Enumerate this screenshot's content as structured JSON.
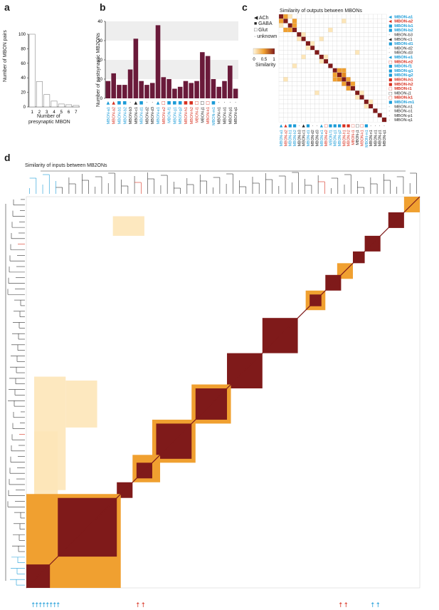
{
  "panels": {
    "a": "a",
    "b": "b",
    "c": "c",
    "d": "d"
  },
  "panel_a": {
    "ylabel": "Number of MBON pairs",
    "xlabel_line1": "Number of",
    "xlabel_line2": "presynaptic MBON",
    "yticks": [
      "0",
      "20",
      "40",
      "60",
      "80",
      "100"
    ],
    "xticks": [
      "1",
      "2",
      "3",
      "4",
      "5",
      "6",
      "7"
    ]
  },
  "panel_b": {
    "ylabel": "Number of postsynaptic MB2ONs",
    "yticks": [
      "0",
      "10",
      "20",
      "30",
      "40"
    ]
  },
  "panel_c": {
    "title": "Similarity of outputs between MBONs",
    "legend": [
      {
        "symbol": "◀",
        "label": "ACh"
      },
      {
        "symbol": "■",
        "label": "GABA"
      },
      {
        "symbol": "□",
        "label": "Glut"
      },
      {
        "symbol": "·",
        "label": "unknown"
      }
    ],
    "scale_ticks": [
      "0",
      "0.5",
      "1"
    ],
    "scale_label": "Similarity"
  },
  "panel_d": {
    "title": "Similarity of inputs between MB2ONs"
  },
  "colors": {
    "bar": "#6a1a3a",
    "blue": "#1a9bd7",
    "red": "#d7301f",
    "dark": "#7f1a1a",
    "mid": "#f0a030",
    "light": "#fde6b8"
  },
  "chart_data": [
    {
      "type": "bar",
      "title": "",
      "xlabel": "Number of presynaptic MBON",
      "ylabel": "Number of MBON pairs",
      "categories": [
        "1",
        "2",
        "3",
        "4",
        "5",
        "6",
        "7"
      ],
      "values": [
        100,
        35,
        17,
        8,
        4,
        3,
        2
      ],
      "ylim": [
        0,
        100
      ]
    },
    {
      "type": "bar",
      "title": "",
      "ylabel": "Number of postsynaptic MB2ONs",
      "ylim": [
        0,
        40
      ],
      "categories": [
        "MBON-a1",
        "MBON-a2",
        "MBON-b1",
        "MBON-b2",
        "MBON-b3",
        "MBON-c1",
        "MBON-d1",
        "MBON-d2",
        "MBON-d3",
        "MBON-e1",
        "MBON-e2",
        "MBON-f1",
        "MBON-g1",
        "MBON-g2",
        "MBON-h1",
        "MBON-h2",
        "MBON-i1",
        "MBON-j1",
        "MBON-k1",
        "MBON-m1",
        "MBON-n1",
        "MBON-o1",
        "MBON-p1",
        "MBON-q1"
      ],
      "values": [
        9,
        13,
        7,
        7,
        15,
        31,
        9,
        7,
        8,
        38,
        11,
        10,
        5,
        6,
        9,
        8,
        9,
        24,
        22,
        10,
        6,
        9,
        17,
        5
      ]
    },
    {
      "type": "heatmap",
      "title": "Similarity of outputs between MBONs",
      "rows": [
        {
          "label": "MBON-a1",
          "transmitter": "ACh",
          "color": "blue"
        },
        {
          "label": "MBON-a2",
          "transmitter": "ACh",
          "color": "red"
        },
        {
          "label": "MBON-b1",
          "transmitter": "GABA",
          "color": "blue"
        },
        {
          "label": "MBON-b2",
          "transmitter": "GABA",
          "color": "blue"
        },
        {
          "label": "MBON-b3",
          "transmitter": "unknown",
          "color": "black"
        },
        {
          "label": "MBON-c1",
          "transmitter": "ACh",
          "color": "black"
        },
        {
          "label": "MBON-d1",
          "transmitter": "GABA",
          "color": "blue"
        },
        {
          "label": "MBON-d2",
          "transmitter": "unknown",
          "color": "black"
        },
        {
          "label": "MBON-d3",
          "transmitter": "unknown",
          "color": "black"
        },
        {
          "label": "MBON-e1",
          "transmitter": "ACh",
          "color": "blue"
        },
        {
          "label": "MBON-e2",
          "transmitter": "Glut",
          "color": "red"
        },
        {
          "label": "MBON-f1",
          "transmitter": "GABA",
          "color": "blue"
        },
        {
          "label": "MBON-g1",
          "transmitter": "GABA",
          "color": "blue"
        },
        {
          "label": "MBON-g2",
          "transmitter": "GABA",
          "color": "blue"
        },
        {
          "label": "MBON-h1",
          "transmitter": "GABA",
          "color": "red"
        },
        {
          "label": "MBON-h2",
          "transmitter": "GABA",
          "color": "red"
        },
        {
          "label": "MBON-i1",
          "transmitter": "Glut",
          "color": "red"
        },
        {
          "label": "MBON-j1",
          "transmitter": "Glut",
          "color": "black"
        },
        {
          "label": "MBON-k1",
          "transmitter": "Glut",
          "color": "red"
        },
        {
          "label": "MBON-m1",
          "transmitter": "GABA",
          "color": "blue"
        },
        {
          "label": "MBON-n1",
          "transmitter": "unknown",
          "color": "black"
        },
        {
          "label": "MBON-o1",
          "transmitter": "unknown",
          "color": "black"
        },
        {
          "label": "MBON-p1",
          "transmitter": "unknown",
          "color": "black"
        },
        {
          "label": "MBON-q1",
          "transmitter": "unknown",
          "color": "black"
        }
      ],
      "scale": [
        0,
        1
      ],
      "offdiagonal": [
        {
          "i": 0,
          "j": 1,
          "v": 0.3
        },
        {
          "i": 0,
          "j": 2,
          "v": 0.2
        },
        {
          "i": 1,
          "j": 3,
          "v": 0.25
        },
        {
          "i": 2,
          "j": 3,
          "v": 0.3
        },
        {
          "i": 4,
          "j": 5,
          "v": 0.15
        },
        {
          "i": 6,
          "j": 7,
          "v": 0.2
        },
        {
          "i": 9,
          "j": 10,
          "v": 0.2
        },
        {
          "i": 12,
          "j": 13,
          "v": 0.4
        },
        {
          "i": 12,
          "j": 14,
          "v": 0.3
        },
        {
          "i": 13,
          "j": 14,
          "v": 0.5
        },
        {
          "i": 14,
          "j": 15,
          "v": 0.35
        },
        {
          "i": 15,
          "j": 16,
          "v": 0.25
        },
        {
          "i": 17,
          "j": 18,
          "v": 0.2
        },
        {
          "i": 19,
          "j": 20,
          "v": 0.15
        },
        {
          "i": 3,
          "j": 11,
          "v": 0.15
        },
        {
          "i": 5,
          "j": 9,
          "v": 0.12
        },
        {
          "i": 1,
          "j": 14,
          "v": 0.12
        },
        {
          "i": 8,
          "j": 17,
          "v": 0.1
        }
      ]
    }
  ]
}
